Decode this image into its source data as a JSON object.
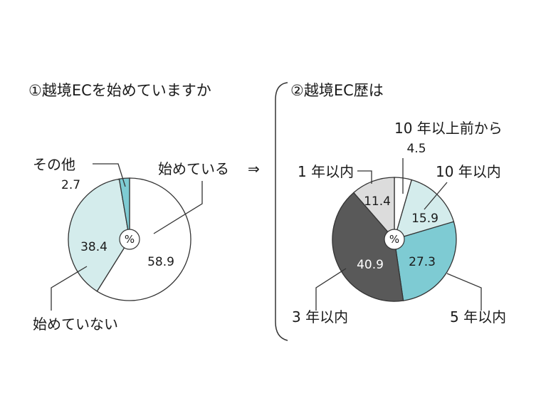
{
  "chart_data": [
    {
      "type": "pie",
      "title": "①越境ECを始めていますか",
      "center_label": "%",
      "start": "12 o'clock, clockwise",
      "slices": [
        {
          "label": "始めている",
          "value": 58.9,
          "color": "#ffffff"
        },
        {
          "label": "始めていない",
          "value": 38.4,
          "color": "#d4ecec"
        },
        {
          "label": "その他",
          "value": 2.7,
          "color": "#7ecbd3"
        }
      ],
      "arrow": "⇒"
    },
    {
      "type": "pie",
      "title": "②越境EC歴は",
      "center_label": "%",
      "start": "12 o'clock, clockwise",
      "slices": [
        {
          "label": "10 年以上前から",
          "value": 4.5,
          "color": "#ffffff"
        },
        {
          "label": "10 年以内",
          "value": 15.9,
          "color": "#d4ecec"
        },
        {
          "label": "5 年以内",
          "value": 27.3,
          "color": "#7ecbd3"
        },
        {
          "label": "3 年以内",
          "value": 40.9,
          "color": "#595959"
        },
        {
          "label": "1 年以内",
          "value": 11.4,
          "color": "#dcdcdc"
        }
      ]
    }
  ]
}
